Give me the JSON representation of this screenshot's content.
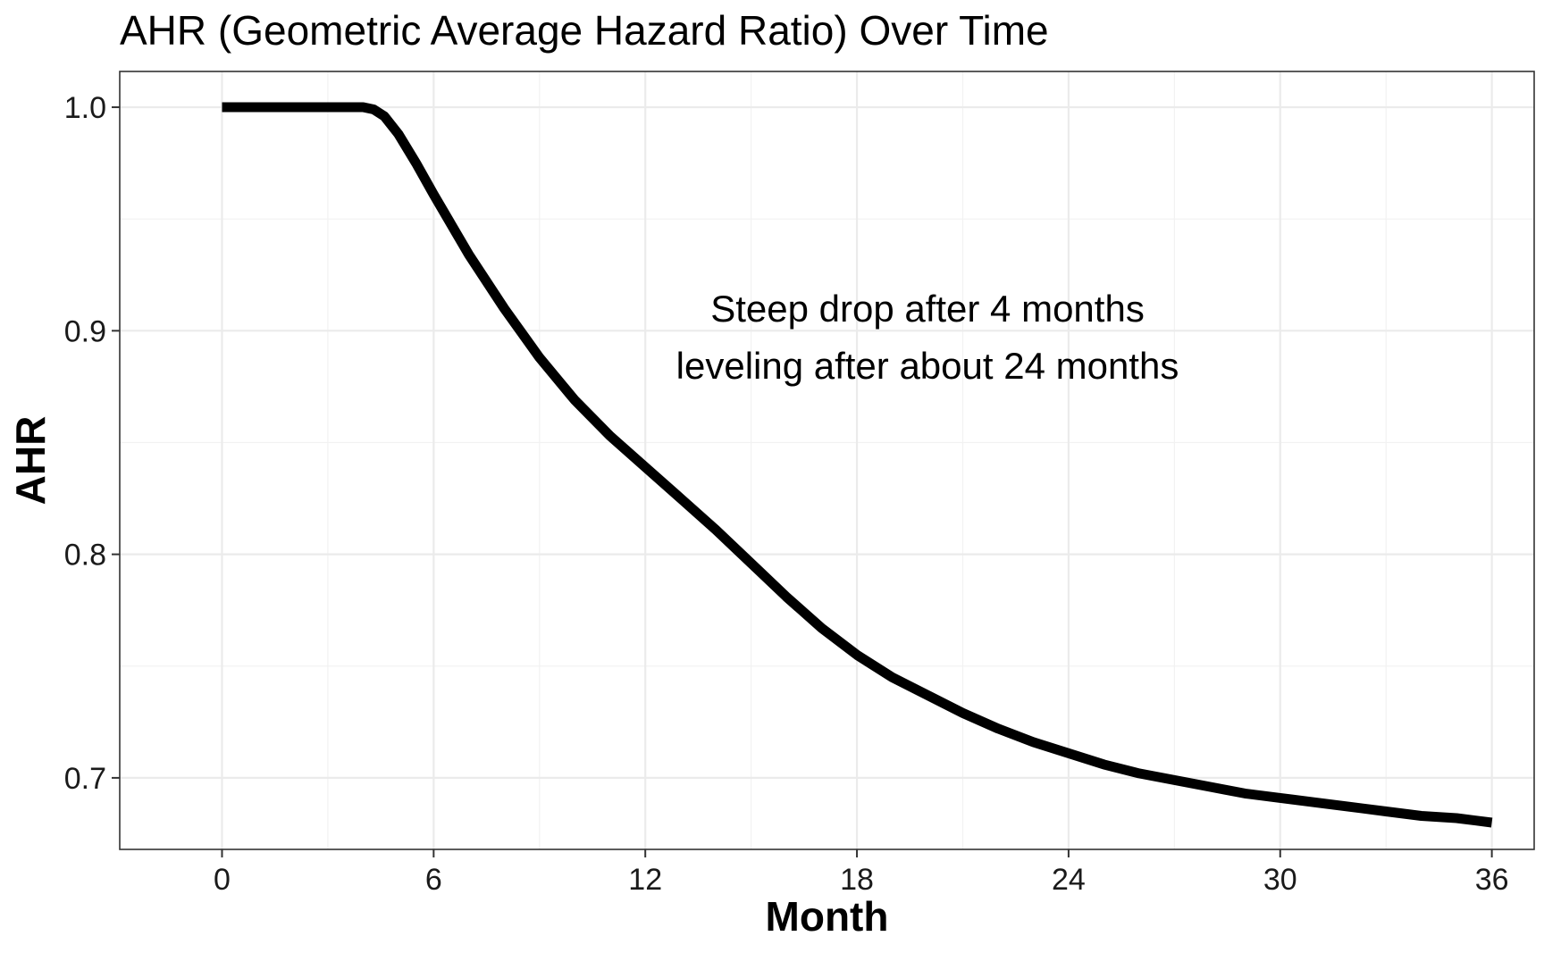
{
  "chart_data": {
    "type": "line",
    "title": "AHR (Geometric Average Hazard Ratio) Over Time",
    "xlabel": "Month",
    "ylabel": "AHR",
    "xlim": [
      -2.9,
      37.2
    ],
    "ylim": [
      0.668,
      1.016
    ],
    "x_ticks": [
      0,
      6,
      12,
      18,
      24,
      30,
      36
    ],
    "x_tick_labels": [
      "0",
      "6",
      "12",
      "18",
      "24",
      "30",
      "36"
    ],
    "y_ticks": [
      0.7,
      0.8,
      0.9,
      1.0
    ],
    "y_tick_labels": [
      "0.7",
      "0.8",
      "0.9",
      "1.0"
    ],
    "grid": true,
    "annotation_lines": [
      "Steep drop after 4 months",
      "leveling after about 24 months"
    ],
    "annotation_position": {
      "x": 20,
      "y": 0.897
    },
    "line_color": "#000000",
    "series": [
      {
        "name": "",
        "x": [
          0,
          1,
          2,
          3,
          4,
          4.3,
          4.6,
          5,
          5.5,
          6,
          7,
          8,
          9,
          10,
          11,
          12,
          13,
          14,
          15,
          16,
          17,
          18,
          19,
          20,
          21,
          22,
          23,
          24,
          25,
          26,
          27,
          28,
          29,
          30,
          31,
          32,
          33,
          34,
          35,
          36
        ],
        "y": [
          1.0,
          1.0,
          1.0,
          1.0,
          1.0,
          0.999,
          0.996,
          0.988,
          0.975,
          0.961,
          0.934,
          0.91,
          0.888,
          0.869,
          0.853,
          0.839,
          0.825,
          0.811,
          0.796,
          0.781,
          0.767,
          0.755,
          0.745,
          0.737,
          0.729,
          0.722,
          0.716,
          0.711,
          0.706,
          0.702,
          0.699,
          0.696,
          0.693,
          0.691,
          0.689,
          0.687,
          0.685,
          0.683,
          0.682,
          0.68
        ]
      }
    ]
  }
}
